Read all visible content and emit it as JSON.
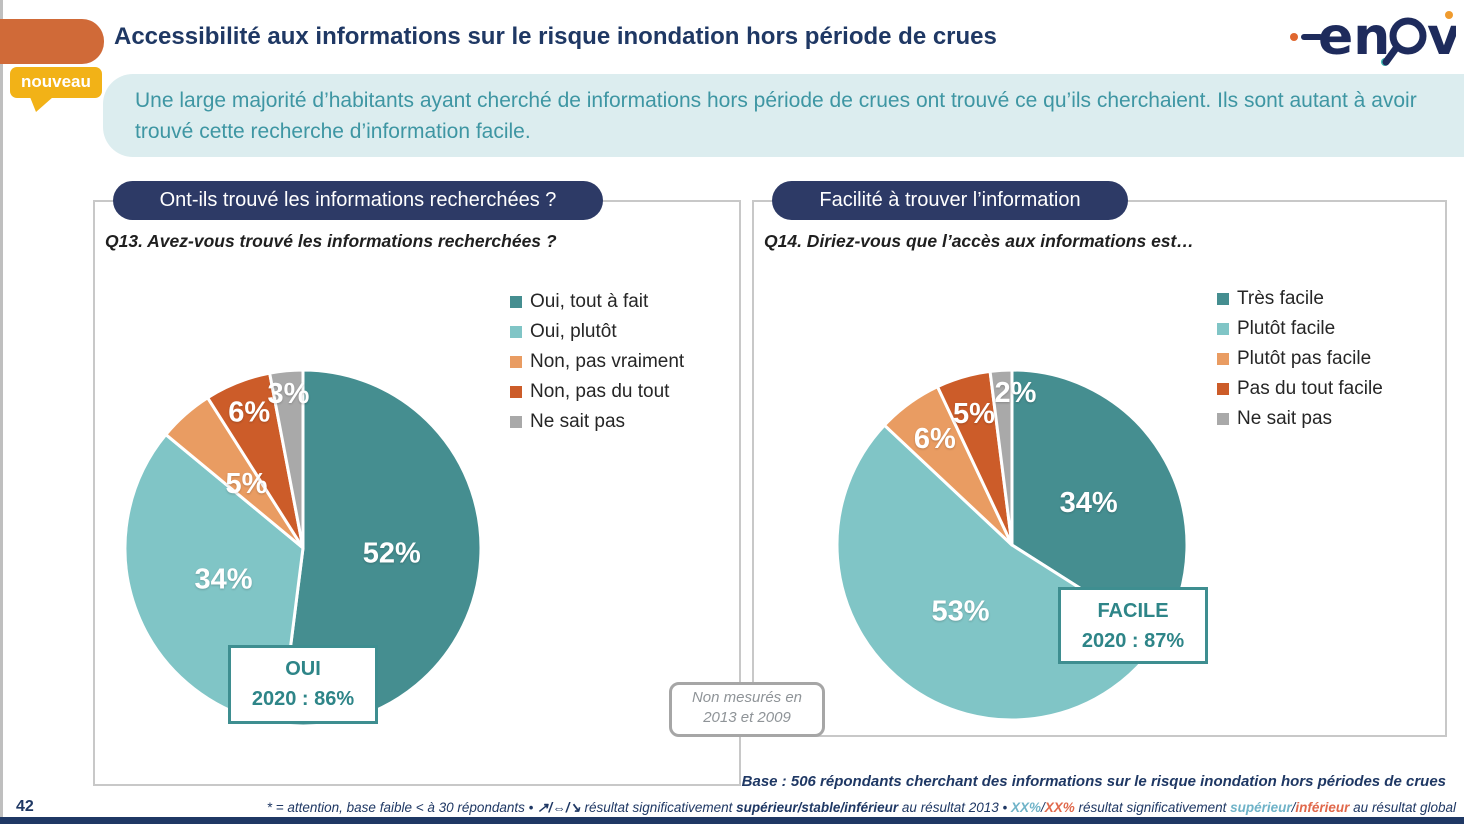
{
  "page": {
    "title": "Accessibilité aux informations sur le risque inondation hors période de crues",
    "new_badge": "nouveau",
    "page_number": "42",
    "logo_text": "enov"
  },
  "banner": {
    "text": "Une large majorité d’habitants ayant cherché de informations hors période de crues ont trouvé ce qu’ils cherchaient. Ils sont autant à avoir trouvé cette recherche d’information facile."
  },
  "left_panel": {
    "header": "Ont-ils trouvé les informations recherchées ?",
    "question": "Q13. Avez-vous trouvé les informations recherchées ?"
  },
  "right_panel": {
    "header": "Facilité à trouver l’information",
    "question": "Q14. Diriez-vous que l’accès aux informations est…",
    "note_box": {
      "line1": "Non mesurés en",
      "line2": "2013 et 2009"
    }
  },
  "footer": {
    "base_text": "Base : 506 répondants cherchant des informations sur le risque inondation hors périodes de crues",
    "footnote_parts": [
      {
        "t": "* = attention, base faible < à 30 répondants • ",
        "c": "fn-navy"
      },
      {
        "t": "↗/⇔/↘",
        "c": "fn-navy-b"
      },
      {
        "t": "  résultat significativement ",
        "c": "fn-navy"
      },
      {
        "t": "supérieur/stable/inférieur",
        "c": "fn-navy-b"
      },
      {
        "t": " au résultat 2013 • ",
        "c": "fn-navy"
      },
      {
        "t": "XX%",
        "c": "fn-teal-b"
      },
      {
        "t": "/",
        "c": "fn-navy"
      },
      {
        "t": "XX%",
        "c": "fn-orange-b"
      },
      {
        "t": " résultat significativement ",
        "c": "fn-navy"
      },
      {
        "t": "supérieur",
        "c": "fn-teal-b"
      },
      {
        "t": "/",
        "c": "fn-navy"
      },
      {
        "t": "inférieur",
        "c": "fn-orange-b"
      },
      {
        "t": " au résultat global",
        "c": "fn-navy"
      }
    ]
  },
  "colors": {
    "navy": "#1f3864",
    "pill_navy": "#2d3a66",
    "banner_bg": "#dcedef",
    "banner_text": "#3e96a3",
    "orange_tab": "#d06a38",
    "gold_badge": "#f2b217",
    "callout_teal": "#3e8e90"
  },
  "chart_data": [
    {
      "type": "pie",
      "title": "Ont-ils trouvé les informations recherchées ?",
      "question": "Q13. Avez-vous trouvé les informations recherchées ?",
      "labels": [
        "Oui, tout à fait",
        "Oui, plutôt",
        "Non, pas vraiment",
        "Non, pas du tout",
        "Ne sait pas"
      ],
      "values": [
        52,
        34,
        5,
        6,
        3
      ],
      "value_labels": [
        "52%",
        "34%",
        "5%",
        "6%",
        "3%"
      ],
      "colors": [
        "#458e90",
        "#80c5c6",
        "#e99c62",
        "#cc5c29",
        "#a9a9a9"
      ],
      "start_angle_deg": 0,
      "direction": "clockwise",
      "legend_position": "right",
      "callout": {
        "label": "OUI",
        "value": "2020 : 86%"
      }
    },
    {
      "type": "pie",
      "title": "Facilité à trouver l’information",
      "question": "Q14. Diriez-vous que l’accès aux informations est…",
      "labels": [
        "Très facile",
        "Plutôt facile",
        "Plutôt pas facile",
        "Pas du tout facile",
        "Ne sait pas"
      ],
      "values": [
        34,
        53,
        6,
        5,
        2
      ],
      "value_labels": [
        "34%",
        "53%",
        "6%",
        "5%",
        "2%"
      ],
      "colors": [
        "#458e90",
        "#80c5c6",
        "#e99c62",
        "#cc5c29",
        "#a9a9a9"
      ],
      "start_angle_deg": 0,
      "direction": "clockwise",
      "legend_position": "right",
      "callout": {
        "label": "FACILE",
        "value": "2020 : 87%"
      },
      "note": "Non mesurés en 2013 et 2009"
    }
  ]
}
